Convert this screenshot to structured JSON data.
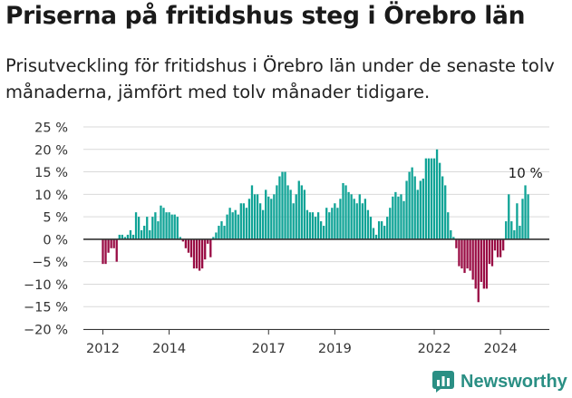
{
  "header": {
    "title": "Priserna på fritidshus steg i Örebro län",
    "subtitle": "Prisutveckling för fritidshus i Örebro län under de senaste tolv månaderna, jämfört med tolv månader tidigare."
  },
  "brand": {
    "name": "Newsworthy",
    "icon": "newsworthy-logo-icon",
    "color": "#2a8f84"
  },
  "colors": {
    "positive": "#0fa396",
    "negative": "#990c44",
    "axis": "#333333",
    "grid": "#d9d9d9",
    "text": "#333333"
  },
  "chart_data": {
    "type": "bar",
    "title": "Priserna på fritidshus steg i Örebro län",
    "subtitle": "Prisutveckling för fritidshus i Örebro län under de senaste tolv månaderna, jämfört med tolv månader tidigare.",
    "xlabel": "",
    "ylabel": "",
    "ylim": [
      -20,
      25
    ],
    "yticks": [
      25,
      20,
      15,
      10,
      5,
      0,
      -5,
      -10,
      -15,
      -20
    ],
    "ytick_labels": [
      "25 %",
      "20 %",
      "15 %",
      "10 %",
      "5 %",
      "0 %",
      "−5 %",
      "−10 %",
      "−15 %",
      "−20 %"
    ],
    "x_start": "2012-01",
    "xticks": [
      {
        "label": "2012",
        "index": 0
      },
      {
        "label": "2014",
        "index": 24
      },
      {
        "label": "2017",
        "index": 60
      },
      {
        "label": "2019",
        "index": 84
      },
      {
        "label": "2022",
        "index": 120
      },
      {
        "label": "2024",
        "index": 144
      }
    ],
    "grid": true,
    "legend": "none",
    "annotation": {
      "text": "10 %",
      "index": 157
    },
    "values": [
      -5.5,
      -5.5,
      -3,
      -2,
      -2,
      -5,
      1,
      1,
      0.5,
      1,
      2,
      1,
      6,
      5,
      2,
      3,
      5,
      2,
      5,
      6,
      4,
      7.5,
      7,
      6,
      6,
      5.5,
      5.5,
      5,
      0.5,
      -0.5,
      -2,
      -3,
      -4,
      -6.5,
      -6.5,
      -7,
      -6.5,
      -4.5,
      -1,
      -4,
      0.5,
      1.5,
      3,
      4,
      3,
      5.5,
      7,
      6,
      6.5,
      5.5,
      8,
      8,
      7,
      9,
      12,
      10,
      10,
      8,
      6.5,
      11,
      9.5,
      9,
      10,
      12,
      14,
      15,
      15,
      12,
      11,
      8,
      10,
      13,
      12,
      11,
      6.5,
      6,
      6,
      5,
      6,
      4,
      3,
      7,
      6,
      7,
      8,
      7,
      9,
      12.5,
      12,
      10.5,
      10,
      9,
      8,
      10,
      8,
      9,
      6.5,
      5,
      2.5,
      1,
      4,
      4,
      3,
      5,
      7,
      9.5,
      10.5,
      9.5,
      10,
      8.5,
      13,
      15,
      16,
      14,
      11,
      13,
      13.5,
      18,
      18,
      18,
      18,
      20,
      17,
      14,
      12,
      6,
      2,
      0.5,
      -2,
      -6,
      -6.5,
      -7.5,
      -6.5,
      -7,
      -9,
      -11,
      -14,
      -9.5,
      -11,
      -11,
      -5.5,
      -6,
      -2.5,
      -4,
      -4,
      -2.5,
      4,
      10,
      4,
      2,
      8,
      3,
      9,
      12,
      10
    ]
  }
}
